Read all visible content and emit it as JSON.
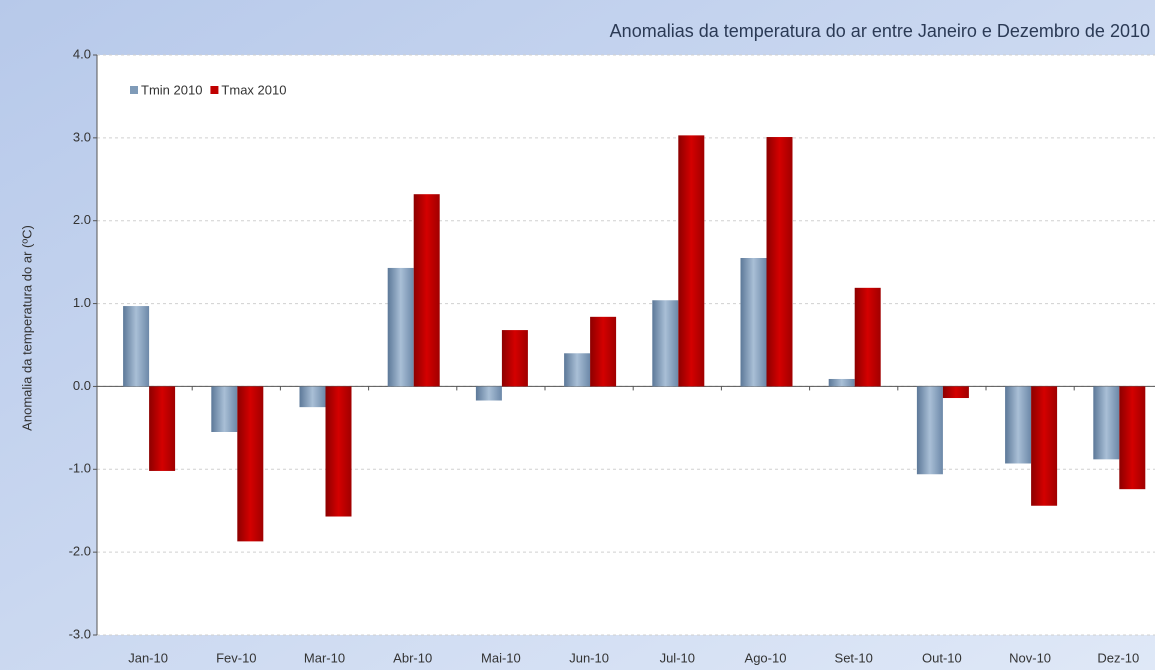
{
  "chart_data": {
    "type": "bar",
    "title": "Anomalias da temperatura do ar entre Janeiro e Dezembro de 2010",
    "y_label": "Anomalia da temperatura do ar (ºC)",
    "categories": [
      "Jan-10",
      "Fev-10",
      "Mar-10",
      "Abr-10",
      "Mai-10",
      "Jun-10",
      "Jul-10",
      "Ago-10",
      "Set-10",
      "Out-10",
      "Nov-10",
      "Dez-10"
    ],
    "series": [
      {
        "name": "Tmin 2010",
        "color": "#7f9bb8",
        "values": [
          0.97,
          -0.55,
          -0.25,
          1.43,
          -0.17,
          0.4,
          1.04,
          1.55,
          0.09,
          -1.06,
          -0.93,
          -0.88
        ]
      },
      {
        "name": "Tmax 2010",
        "color": "#c00000",
        "values": [
          -1.02,
          -1.87,
          -1.57,
          2.32,
          0.68,
          0.84,
          3.03,
          3.01,
          1.19,
          -0.14,
          -1.44,
          -1.24
        ]
      }
    ],
    "ylim": [
      -3,
      4
    ],
    "yticks": [
      {
        "value": -3,
        "label": "-3.0"
      },
      {
        "value": -2,
        "label": "-2.0"
      },
      {
        "value": -1,
        "label": "-1.0"
      },
      {
        "value": 0,
        "label": "0.0"
      },
      {
        "value": 1,
        "label": "1.0"
      },
      {
        "value": 2,
        "label": "2.0"
      },
      {
        "value": 3,
        "label": "3.0"
      },
      {
        "value": 4,
        "label": "4.0"
      }
    ],
    "grid": true,
    "legend": "top-left"
  }
}
